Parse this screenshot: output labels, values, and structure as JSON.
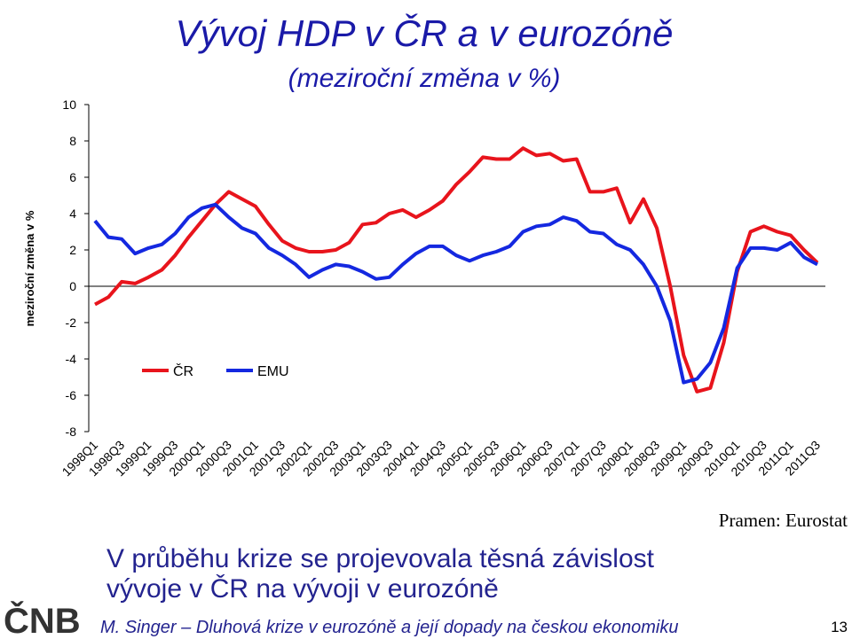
{
  "chart_data": {
    "type": "line",
    "title": "Vývoj HDP v ČR a v eurozóně",
    "subtitle": "(meziroční změna v %)",
    "y_label": "meziroční změna v %",
    "source": "Pramen: Eurostat",
    "categories": [
      "1998Q1",
      null,
      "1998Q3",
      null,
      "1999Q1",
      null,
      "1999Q3",
      null,
      "2000Q1",
      null,
      "2000Q3",
      null,
      "2001Q1",
      null,
      "2001Q3",
      null,
      "2002Q1",
      null,
      "2002Q3",
      null,
      "2003Q1",
      null,
      "2003Q3",
      null,
      "2004Q1",
      null,
      "2004Q3",
      null,
      "2005Q1",
      null,
      "2005Q3",
      null,
      "2006Q1",
      null,
      "2006Q3",
      null,
      "2007Q1",
      null,
      "2007Q3",
      null,
      "2008Q1",
      null,
      "2008Q3",
      null,
      "2009Q1",
      null,
      "2009Q3",
      null,
      "2010Q1",
      null,
      "2010Q3",
      null,
      "2011Q1",
      null,
      "2011Q3"
    ],
    "series": [
      {
        "name": "ČR",
        "color": "#e8141c",
        "values": [
          -1.0,
          -0.6,
          0.25,
          0.15,
          0.5,
          0.9,
          1.7,
          2.7,
          3.6,
          4.5,
          5.2,
          4.8,
          4.4,
          3.4,
          2.5,
          2.1,
          1.9,
          1.9,
          2.0,
          2.4,
          3.4,
          3.5,
          4.0,
          4.2,
          3.8,
          4.2,
          4.7,
          5.6,
          6.3,
          7.1,
          7.0,
          7.0,
          7.6,
          7.2,
          7.3,
          6.9,
          7.0,
          5.2,
          5.2,
          5.4,
          3.5,
          4.8,
          3.2,
          0.0,
          -3.8,
          -5.8,
          -5.6,
          -3.1,
          0.8,
          3.0,
          3.3,
          3.0,
          2.8,
          2.0,
          1.3
        ]
      },
      {
        "name": "EMU",
        "color": "#1428e0",
        "values": [
          3.6,
          2.7,
          2.6,
          1.8,
          2.1,
          2.3,
          2.9,
          3.8,
          4.3,
          4.5,
          3.8,
          3.2,
          2.9,
          2.1,
          1.7,
          1.2,
          0.5,
          0.9,
          1.2,
          1.1,
          0.8,
          0.4,
          0.5,
          1.2,
          1.8,
          2.2,
          2.2,
          1.7,
          1.4,
          1.7,
          1.9,
          2.2,
          3.0,
          3.3,
          3.4,
          3.8,
          3.6,
          3.0,
          2.9,
          2.3,
          2.0,
          1.2,
          0.0,
          -1.9,
          -5.3,
          -5.1,
          -4.2,
          -2.3,
          1.0,
          2.1,
          2.1,
          2.0,
          2.4,
          1.6,
          1.2
        ]
      }
    ],
    "ylim": [
      -8,
      10
    ],
    "yticks": [
      -8,
      -6,
      -4,
      -2,
      0,
      2,
      4,
      6,
      8,
      10
    ],
    "grid": false,
    "legend": "lower left"
  },
  "slide": {
    "caption": [
      "V průběhu krize se projevovala těsná závislost",
      "vývoje v ČR na vývoji v eurozóně"
    ],
    "footer": "M. Singer – Dluhová krize v eurozóně a její dopady na českou ekonomiku",
    "page_number": "13",
    "logo": "ČNB"
  }
}
